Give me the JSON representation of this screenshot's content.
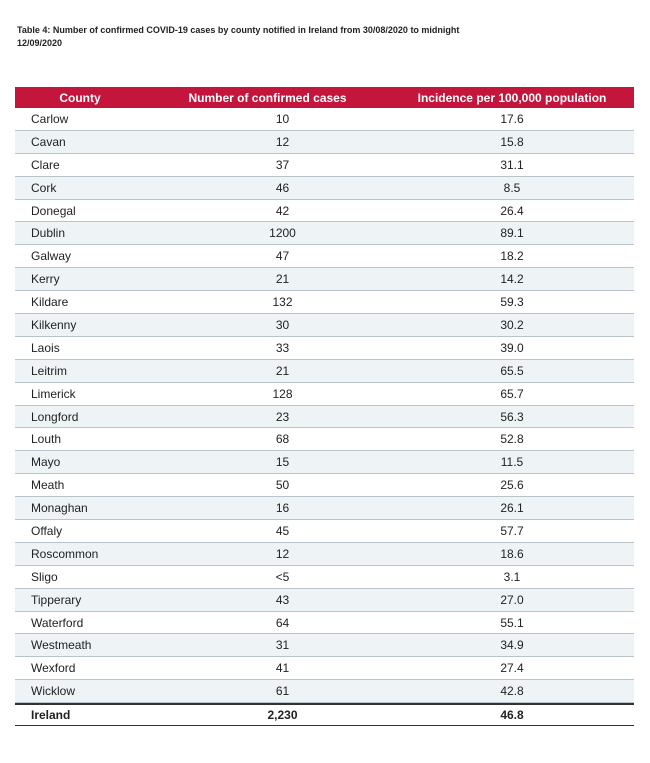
{
  "header": {
    "title": "Table 4: Number of confirmed COVID-19 cases by county notified in Ireland from 30/08/2020 to midnight 12/09/2020"
  },
  "table": {
    "columns": [
      "County",
      "Number of confirmed cases",
      "Incidence per 100,000 population"
    ],
    "rows": [
      [
        "Carlow",
        "10",
        "17.6"
      ],
      [
        "Cavan",
        "12",
        "15.8"
      ],
      [
        "Clare",
        "37",
        "31.1"
      ],
      [
        "Cork",
        "46",
        "8.5"
      ],
      [
        "Donegal",
        "42",
        "26.4"
      ],
      [
        "Dublin",
        "1200",
        "89.1"
      ],
      [
        "Galway",
        "47",
        "18.2"
      ],
      [
        "Kerry",
        "21",
        "14.2"
      ],
      [
        "Kildare",
        "132",
        "59.3"
      ],
      [
        "Kilkenny",
        "30",
        "30.2"
      ],
      [
        "Laois",
        "33",
        "39.0"
      ],
      [
        "Leitrim",
        "21",
        "65.5"
      ],
      [
        "Limerick",
        "128",
        "65.7"
      ],
      [
        "Longford",
        "23",
        "56.3"
      ],
      [
        "Louth",
        "68",
        "52.8"
      ],
      [
        "Mayo",
        "15",
        "11.5"
      ],
      [
        "Meath",
        "50",
        "25.6"
      ],
      [
        "Monaghan",
        "16",
        "26.1"
      ],
      [
        "Offaly",
        "45",
        "57.7"
      ],
      [
        "Roscommon",
        "12",
        "18.6"
      ],
      [
        "Sligo",
        "<5",
        "3.1"
      ],
      [
        "Tipperary",
        "43",
        "27.0"
      ],
      [
        "Waterford",
        "64",
        "55.1"
      ],
      [
        "Westmeath",
        "31",
        "34.9"
      ],
      [
        "Wexford",
        "41",
        "27.4"
      ],
      [
        "Wicklow",
        "61",
        "42.8"
      ]
    ],
    "total": [
      "Ireland",
      "2,230",
      "46.8"
    ]
  }
}
